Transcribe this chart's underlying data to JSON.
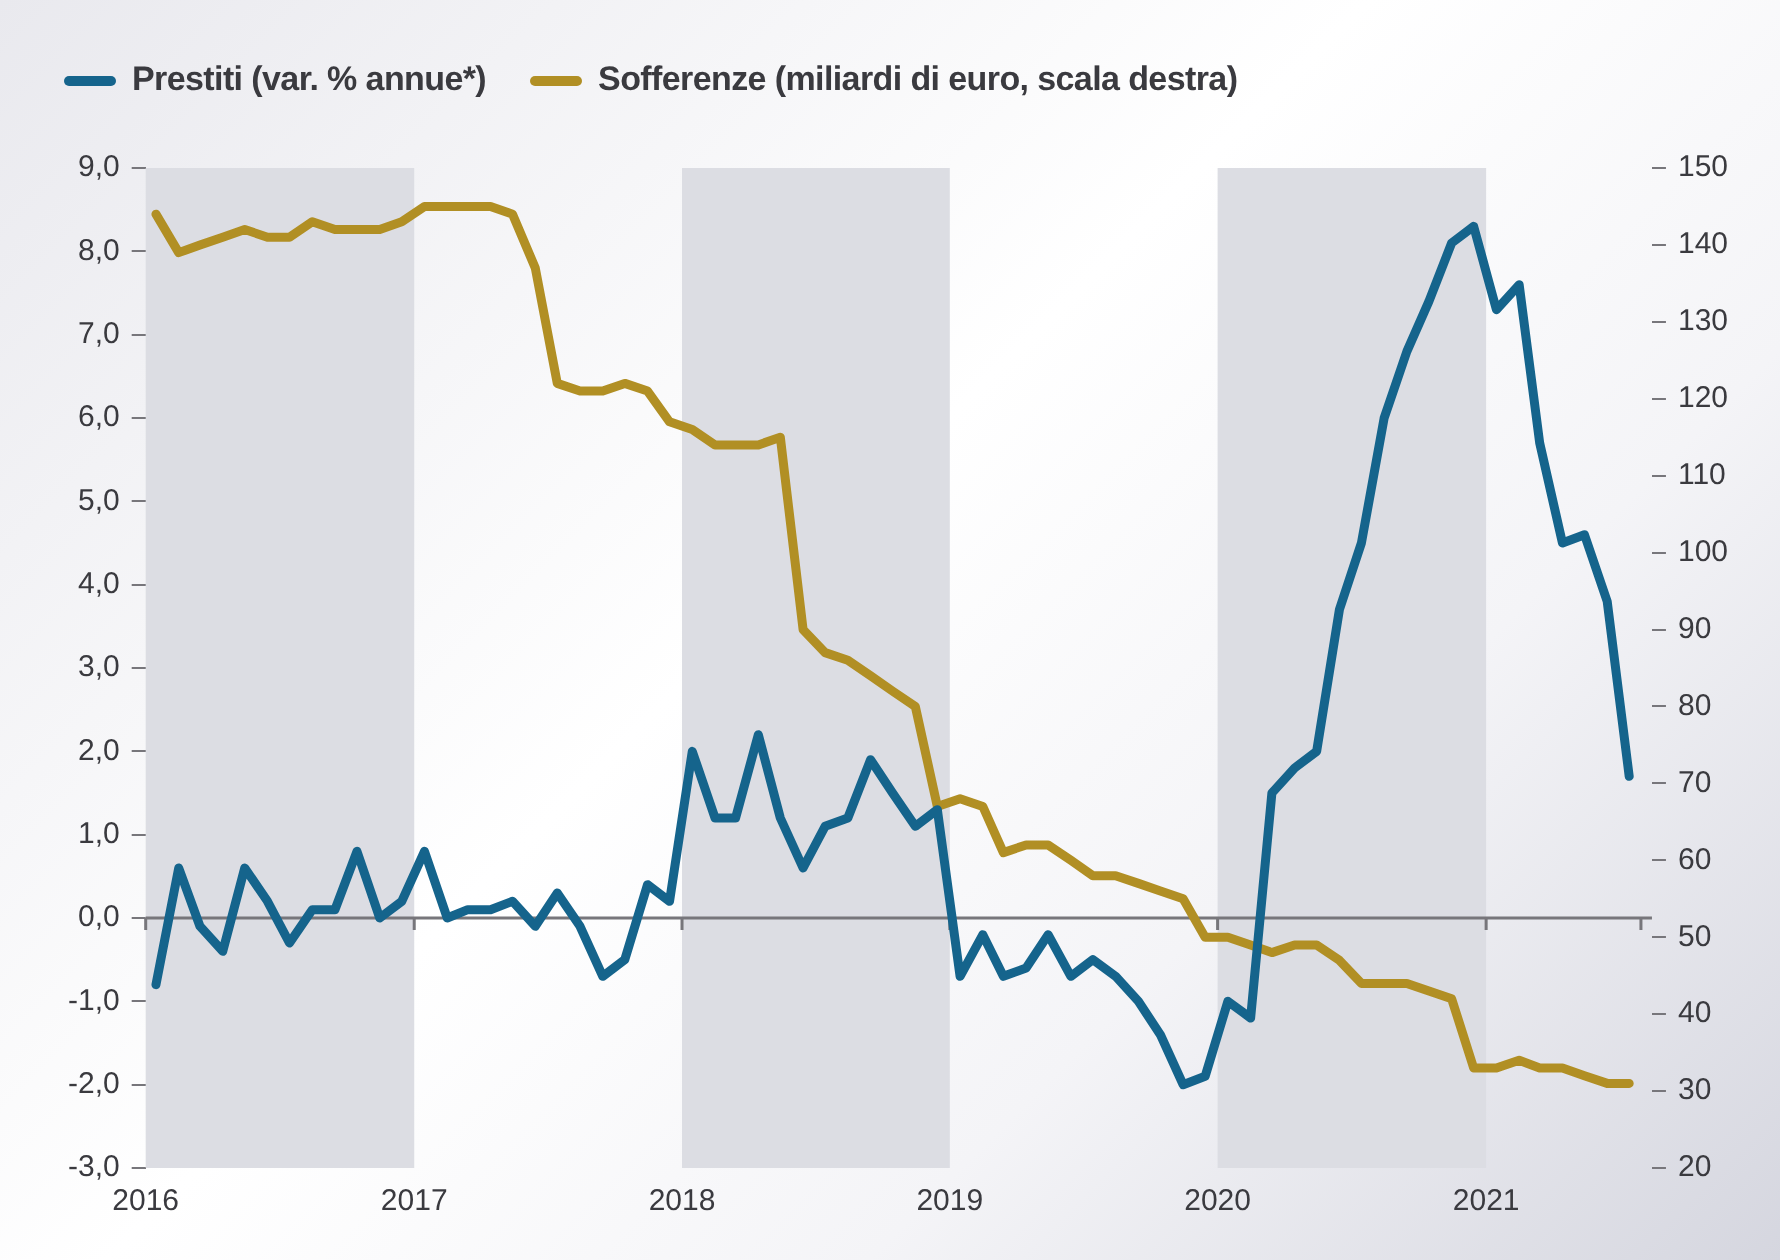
{
  "chart_data": {
    "type": "line",
    "x": [
      "2016-01-15",
      "2016-02-15",
      "2016-03-15",
      "2016-04-15",
      "2016-05-15",
      "2016-06-15",
      "2016-07-15",
      "2016-08-15",
      "2016-09-15",
      "2016-10-15",
      "2016-11-15",
      "2016-12-15",
      "2017-01-15",
      "2017-02-15",
      "2017-03-15",
      "2017-04-15",
      "2017-05-15",
      "2017-06-15",
      "2017-07-15",
      "2017-08-15",
      "2017-09-15",
      "2017-10-15",
      "2017-11-15",
      "2017-12-15",
      "2018-01-15",
      "2018-02-15",
      "2018-03-15",
      "2018-04-15",
      "2018-05-15",
      "2018-06-15",
      "2018-07-15",
      "2018-08-15",
      "2018-09-15",
      "2018-10-15",
      "2018-11-15",
      "2018-12-15",
      "2019-01-15",
      "2019-02-15",
      "2019-03-15",
      "2019-04-15",
      "2019-05-15",
      "2019-06-15",
      "2019-07-15",
      "2019-08-15",
      "2019-09-15",
      "2019-10-15",
      "2019-11-15",
      "2019-12-15",
      "2020-01-15",
      "2020-02-15",
      "2020-03-15",
      "2020-04-15",
      "2020-05-15",
      "2020-06-15",
      "2020-07-15",
      "2020-08-15",
      "2020-09-15",
      "2020-10-15",
      "2020-11-15",
      "2020-12-15",
      "2021-01-15",
      "2021-02-15",
      "2021-03-15",
      "2021-04-15",
      "2021-05-15",
      "2021-06-15",
      "2021-07-15"
    ],
    "series": [
      {
        "name": "Prestiti (var. % annue*)",
        "color": "#15648c",
        "values": [
          -0.8,
          0.6,
          -0.1,
          -0.4,
          0.6,
          0.2,
          -0.3,
          0.1,
          0.1,
          0.8,
          0.0,
          0.2,
          0.8,
          0.0,
          0.1,
          0.1,
          0.2,
          -0.1,
          0.3,
          -0.1,
          -0.7,
          -0.5,
          0.4,
          0.2,
          2.0,
          1.2,
          1.2,
          2.2,
          1.2,
          0.6,
          1.1,
          1.2,
          1.9,
          1.5,
          1.1,
          1.3,
          -0.7,
          -0.2,
          -0.7,
          -0.6,
          -0.2,
          -0.7,
          -0.5,
          -0.7,
          -1.0,
          -1.4,
          -2.0,
          -1.9,
          -1.0,
          -1.2,
          1.5,
          1.8,
          2.0,
          3.7,
          4.5,
          6.0,
          6.8,
          7.4,
          8.1,
          8.3,
          7.3,
          7.6,
          5.7,
          4.5,
          4.6,
          3.8,
          1.7
        ]
      },
      {
        "name": "Sofferenze (miliardi di euro, scala destra)",
        "color": "#b18f24",
        "axis": "y2",
        "values": [
          144,
          139,
          140,
          141,
          142,
          141,
          141,
          143,
          142,
          142,
          142,
          143,
          145,
          145,
          145,
          145,
          144,
          137,
          122,
          121,
          121,
          122,
          121,
          117,
          116,
          114,
          114,
          114,
          115,
          90,
          87,
          86,
          84,
          82,
          80,
          67,
          68,
          67,
          61,
          62,
          62,
          60,
          58,
          58,
          57,
          56,
          55,
          50,
          50,
          49,
          48,
          49,
          49,
          47,
          44,
          44,
          44,
          43,
          42,
          33,
          33,
          34,
          33,
          33,
          32,
          31,
          31
        ]
      }
    ],
    "xlim": [
      "2016-01-01",
      "2021-08-15"
    ],
    "xticks": [
      {
        "value": "2016",
        "label": "2016"
      },
      {
        "value": "2017",
        "label": "2017"
      },
      {
        "value": "2018",
        "label": "2018"
      },
      {
        "value": "2019",
        "label": "2019"
      },
      {
        "value": "2020",
        "label": "2020"
      },
      {
        "value": "2021",
        "label": "2021"
      },
      {
        "value": "2021-07-31",
        "label": null
      }
    ],
    "ylim": [
      -3,
      9
    ],
    "yticks": [
      {
        "value": -3,
        "label": "-3,0"
      },
      {
        "value": -2,
        "label": "-2,0"
      },
      {
        "value": -1,
        "label": "-1,0"
      },
      {
        "value": 0,
        "label": "0,0"
      },
      {
        "value": 1,
        "label": "1,0"
      },
      {
        "value": 2,
        "label": "2,0"
      },
      {
        "value": 3,
        "label": "3,0"
      },
      {
        "value": 4,
        "label": "4,0"
      },
      {
        "value": 5,
        "label": "5,0"
      },
      {
        "value": 6,
        "label": "6,0"
      },
      {
        "value": 7,
        "label": "7,0"
      },
      {
        "value": 8,
        "label": "8,0"
      },
      {
        "value": 9,
        "label": "9,0"
      }
    ],
    "y2lim": [
      20,
      150
    ],
    "y2ticks": [
      20,
      30,
      40,
      50,
      60,
      70,
      80,
      90,
      100,
      110,
      120,
      130,
      140,
      150
    ],
    "bands": [
      {
        "axis": "x",
        "from": "2016-01-01",
        "to": "2017-01-01",
        "color": "#dcdde3"
      },
      {
        "axis": "x",
        "from": "2018-01-01",
        "to": "2019-01-01",
        "color": "#dcdde3"
      },
      {
        "axis": "x",
        "from": "2020-01-01",
        "to": "2021-01-01",
        "color": "#dcdde3"
      }
    ],
    "ref_lines": [
      {
        "axis": "y",
        "value": 0,
        "color": "#77767b"
      }
    ],
    "legend": "top left",
    "grid": false,
    "marker": "none",
    "line_style": "solid"
  }
}
